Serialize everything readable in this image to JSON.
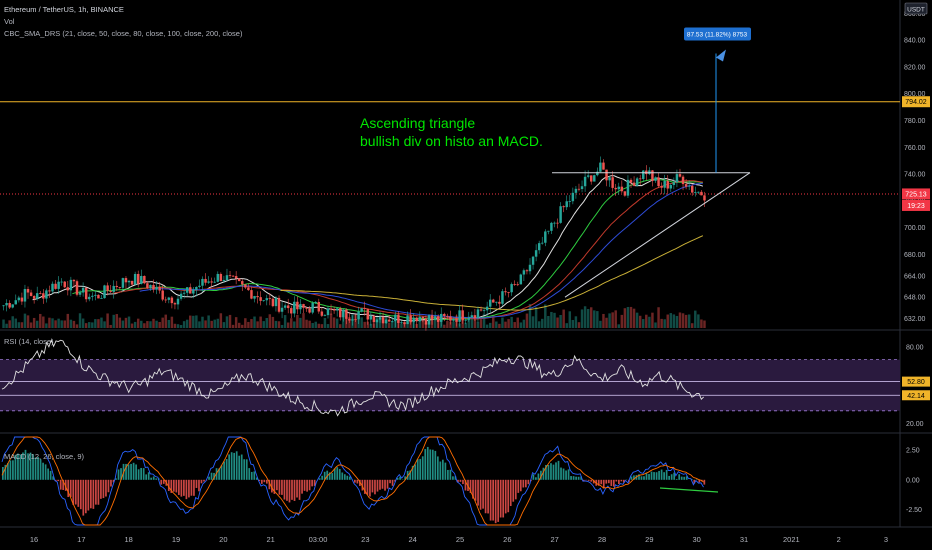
{
  "header": {
    "symbol_line": "Ethereum / TetherUS, 1h, BINANCE",
    "volume_label": "Vol",
    "sma_label": "CBC_SMA_DRS (21, close, 50, close, 80, close, 100, close, 200, close)"
  },
  "annotation": {
    "line1": "Ascending triangle",
    "line2": "bullish div on histo an MACD."
  },
  "measure_tag": "87.53 (11.82%) 8753",
  "colors": {
    "bg": "#000000",
    "up": "#26a69a",
    "down": "#ef5350",
    "annotation": "#00e600",
    "accent_blue": "#2962ff",
    "rsi_band": "#2a1a3e",
    "price_line": "#f23645"
  },
  "chart_data": [
    {
      "type": "candlestick",
      "title": "Ethereum / TetherUS, 1h, BINANCE",
      "currency": "USDT",
      "x_tick_labels": [
        "16",
        "17",
        "18",
        "19",
        "20",
        "21",
        "03:00",
        "23",
        "24",
        "25",
        "26",
        "27",
        "28",
        "29",
        "30",
        "31",
        "2021",
        "2",
        "3"
      ],
      "y_tick_labels": [
        "860.00",
        "840.00",
        "820.00",
        "800.00",
        "780.00",
        "760.00",
        "740.00",
        "720.00",
        "700.00",
        "680.00",
        "664.00",
        "648.00",
        "632.00"
      ],
      "ylim": [
        625,
        870
      ],
      "marked_levels": [
        {
          "label": "794.02",
          "value": 794.02,
          "color": "#f0b429"
        },
        {
          "label": "725.13",
          "value": 725.13,
          "color": "#f23645"
        }
      ],
      "countdown": "19:23",
      "triangle_resistance": 741,
      "measured_move_target": 830,
      "close_approx": 725,
      "price_path": [
        642,
        646,
        651,
        648,
        655,
        660,
        656,
        650,
        648,
        653,
        658,
        662,
        660,
        655,
        649,
        647,
        651,
        657,
        661,
        664,
        659,
        654,
        650,
        645,
        642,
        640,
        639,
        641,
        638,
        636,
        635,
        637,
        634,
        633,
        632,
        633,
        634,
        632,
        631,
        633,
        635,
        637,
        640,
        646,
        652,
        660,
        675,
        690,
        705,
        718,
        728,
        738,
        744,
        733,
        728,
        737,
        743,
        730,
        733,
        738,
        728,
        725
      ],
      "sma_series": [
        {
          "period": 21,
          "color": "#e0e0e0"
        },
        {
          "period": 50,
          "color": "#2ecc40"
        },
        {
          "period": 80,
          "color": "#c0392b"
        },
        {
          "period": 100,
          "color": "#2e4bd6"
        },
        {
          "period": 200,
          "color": "#c9b037"
        }
      ]
    },
    {
      "type": "line",
      "title": "RSI (14, close)",
      "y_tick_labels": [
        "80.00",
        "20.00"
      ],
      "band_upper": 70,
      "band_lower": 30,
      "last_values": [
        {
          "label": "52.80",
          "value": 52.8
        },
        {
          "label": "42.14",
          "value": 42.14
        }
      ],
      "ylim": [
        15,
        90
      ],
      "values": [
        50,
        56,
        64,
        72,
        80,
        84,
        78,
        66,
        60,
        55,
        52,
        48,
        50,
        56,
        61,
        57,
        52,
        47,
        42,
        46,
        52,
        58,
        55,
        50,
        45,
        40,
        37,
        34,
        30,
        29,
        33,
        38,
        42,
        40,
        36,
        34,
        38,
        44,
        48,
        52,
        55,
        58,
        62,
        68,
        72,
        70,
        66,
        60,
        58,
        66,
        70,
        62,
        55,
        58,
        62,
        54,
        52,
        58,
        55,
        48,
        44,
        42
      ]
    },
    {
      "type": "bar",
      "title": "MACD (12, 26, close, 9)",
      "y_tick_labels": [
        "2.50",
        "0.00",
        "-2.50"
      ],
      "ylim": [
        -3.8,
        3.6
      ],
      "histogram": [
        1.2,
        1.8,
        2.4,
        2.0,
        1.0,
        -0.6,
        -1.8,
        -2.9,
        -2.2,
        -1.2,
        0.6,
        1.6,
        1.0,
        0.3,
        -0.4,
        -1.2,
        -1.6,
        -0.8,
        0.5,
        1.2,
        2.6,
        1.8,
        0.4,
        -0.6,
        -1.2,
        -2.0,
        -1.4,
        -0.4,
        0.5,
        0.9,
        0.3,
        -0.6,
        -1.3,
        -0.9,
        -0.2,
        0.4,
        1.5,
        2.8,
        1.8,
        0.6,
        -0.4,
        -1.6,
        -2.9,
        -3.6,
        -2.6,
        -1.0,
        0.2,
        0.9,
        1.6,
        0.8,
        0.2,
        -0.3,
        -0.6,
        -0.4,
        -0.2,
        0.2,
        0.6,
        0.9,
        0.5,
        0.2,
        -0.1,
        -0.3
      ]
    }
  ]
}
